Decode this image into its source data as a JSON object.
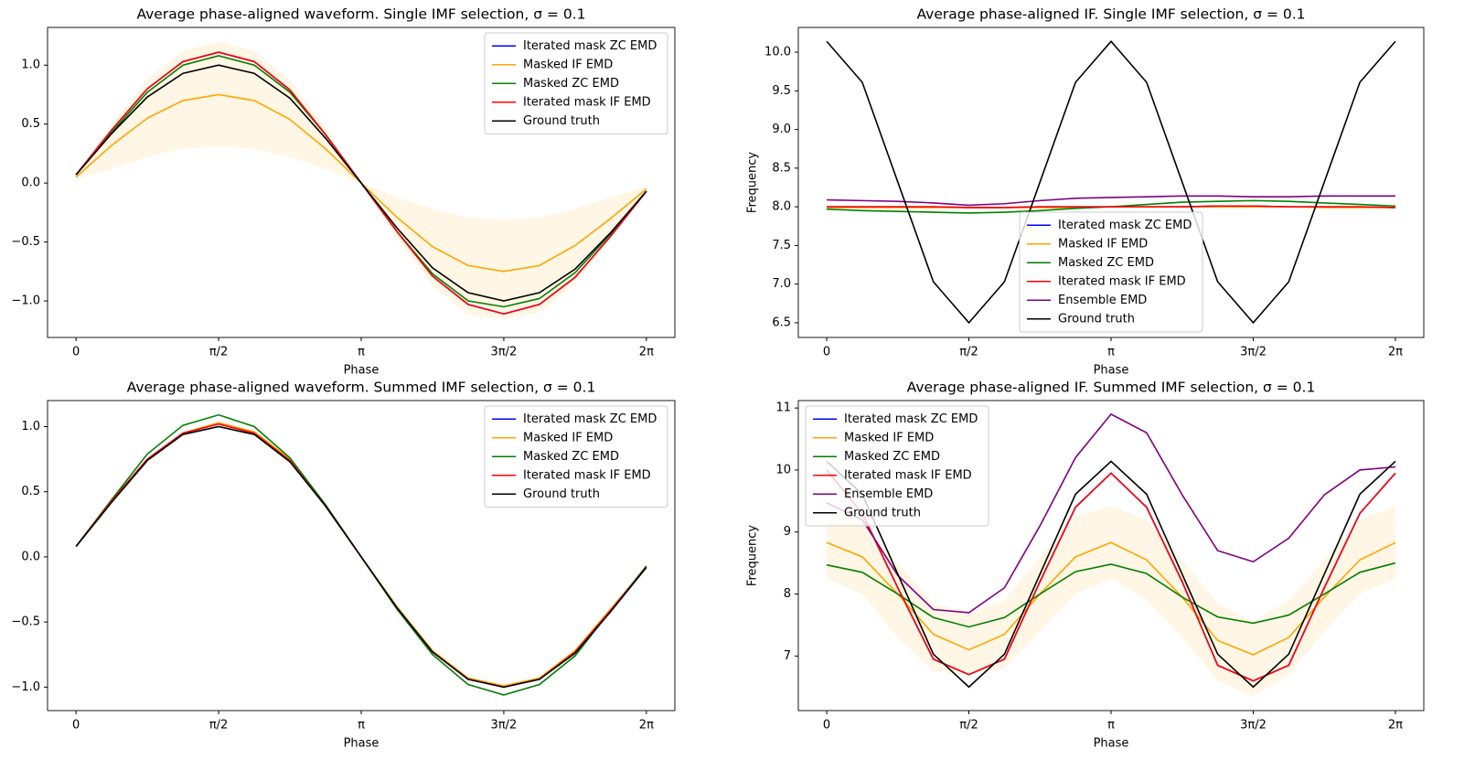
{
  "chart_data": [
    {
      "type": "line",
      "title": "Average phase-aligned waveform. Single IMF selection, σ = 0.1",
      "xlabel": "Phase",
      "legend": "upper right",
      "x": [
        0,
        0.3927,
        0.7854,
        1.1781,
        1.5708,
        1.9635,
        2.3562,
        2.7489,
        3.1416,
        3.5343,
        3.927,
        4.3197,
        4.7124,
        5.1051,
        5.4978,
        5.8905,
        6.2832
      ],
      "xlim": [
        -0.314,
        6.597
      ],
      "ylim": [
        -1.31,
        1.32
      ],
      "xticks": [
        0,
        {
          "value": 1.5708,
          "label": "π/2"
        },
        {
          "value": 3.1416,
          "label": "π"
        },
        {
          "value": 4.7124,
          "label": "3π/2"
        },
        {
          "value": 6.2832,
          "label": "2π"
        }
      ],
      "yticks": [
        {
          "value": -1,
          "label": "−1.0"
        },
        {
          "value": -0.5,
          "label": "−0.5"
        },
        {
          "value": 0,
          "label": "0.0"
        },
        0.5,
        {
          "value": 1,
          "label": "1.0"
        }
      ],
      "series": [
        {
          "name": "Iterated mask ZC EMD",
          "color": "#0000ff",
          "values": [
            0.07,
            0.45,
            0.8,
            1.03,
            1.11,
            1.03,
            0.79,
            0.41,
            0,
            -0.41,
            -0.79,
            -1.03,
            -1.11,
            -1.03,
            -0.8,
            -0.45,
            -0.07
          ]
        },
        {
          "name": "Masked IF EMD",
          "color": "#ffa500",
          "values": [
            0.05,
            0.32,
            0.55,
            0.7,
            0.75,
            0.7,
            0.54,
            0.29,
            0,
            -0.29,
            -0.54,
            -0.7,
            -0.75,
            -0.7,
            -0.53,
            -0.3,
            -0.05
          ],
          "band": {
            "upper": [
              0.07,
              0.5,
              0.88,
              1.12,
              1.2,
              1.12,
              0.87,
              0.47,
              0.0,
              -0.12,
              -0.22,
              -0.29,
              -0.31,
              -0.29,
              -0.22,
              -0.12,
              -0.03
            ],
            "lower": [
              0.03,
              0.12,
              0.22,
              0.29,
              0.31,
              0.29,
              0.22,
              0.12,
              0,
              -0.47,
              -0.87,
              -1.12,
              -1.15,
              -1.1,
              -0.86,
              -0.47,
              -0.07
            ]
          }
        },
        {
          "name": "Masked ZC EMD",
          "color": "#008000",
          "values": [
            0.07,
            0.43,
            0.77,
            1.0,
            1.08,
            1.0,
            0.77,
            0.41,
            0,
            -0.41,
            -0.77,
            -1.0,
            -1.05,
            -0.98,
            -0.76,
            -0.43,
            -0.07
          ]
        },
        {
          "name": "Iterated mask IF EMD",
          "color": "#ff0000",
          "values": [
            0.07,
            0.45,
            0.8,
            1.03,
            1.11,
            1.03,
            0.79,
            0.41,
            0,
            -0.41,
            -0.79,
            -1.03,
            -1.11,
            -1.03,
            -0.8,
            -0.45,
            -0.07
          ]
        },
        {
          "name": "Ground truth",
          "color": "#000000",
          "values": [
            0.07,
            0.42,
            0.73,
            0.93,
            1,
            0.93,
            0.72,
            0.38,
            0,
            -0.38,
            -0.72,
            -0.93,
            -1,
            -0.93,
            -0.73,
            -0.42,
            -0.07
          ]
        }
      ]
    },
    {
      "type": "line",
      "title": "Average phase-aligned IF. Single IMF selection, σ = 0.1",
      "xlabel": "Phase",
      "ylabel": "Frequency",
      "legend": "lower center",
      "x": [
        0,
        0.3927,
        0.7854,
        1.1781,
        1.5708,
        1.9635,
        2.3562,
        2.7489,
        3.1416,
        3.5343,
        3.927,
        4.3197,
        4.7124,
        5.1051,
        5.4978,
        5.8905,
        6.2832
      ],
      "xlim": [
        -0.314,
        6.597
      ],
      "ylim": [
        6.31,
        10.32
      ],
      "xticks": [
        0,
        {
          "value": 1.5708,
          "label": "π/2"
        },
        {
          "value": 3.1416,
          "label": "π"
        },
        {
          "value": 4.7124,
          "label": "3π/2"
        },
        {
          "value": 6.2832,
          "label": "2π"
        }
      ],
      "yticks": [
        6.5,
        {
          "value": 7,
          "label": "7.0"
        },
        7.5,
        {
          "value": 8,
          "label": "8.0"
        },
        8.5,
        {
          "value": 9,
          "label": "9.0"
        },
        9.5,
        {
          "value": 10,
          "label": "10.0"
        }
      ],
      "series": [
        {
          "name": "Iterated mask ZC EMD",
          "color": "#0000ff",
          "values": [
            8.0,
            8.0,
            8.0,
            8.0,
            7.99,
            7.99,
            8.0,
            8.0,
            8.0,
            8.0,
            8.0,
            8.01,
            8.01,
            8.0,
            8.0,
            8.0,
            7.99
          ]
        },
        {
          "name": "Masked IF EMD",
          "color": "#ffa500",
          "values": [
            7.99,
            7.99,
            7.99,
            7.99,
            7.99,
            7.99,
            7.99,
            7.99,
            8.0,
            8.0,
            8.0,
            8.0,
            8.0,
            8.0,
            7.99,
            7.99,
            7.99
          ]
        },
        {
          "name": "Masked ZC EMD",
          "color": "#008000",
          "values": [
            7.97,
            7.95,
            7.94,
            7.93,
            7.92,
            7.93,
            7.95,
            7.98,
            8.0,
            8.03,
            8.06,
            8.07,
            8.08,
            8.07,
            8.05,
            8.03,
            8.01
          ]
        },
        {
          "name": "Iterated mask IF EMD",
          "color": "#ff0000",
          "values": [
            8.0,
            8.0,
            8.0,
            8.0,
            7.99,
            7.99,
            8.0,
            8.0,
            8.0,
            8.0,
            8.0,
            8.01,
            8.01,
            8.0,
            8.0,
            8.0,
            7.99
          ]
        },
        {
          "name": "Ensemble EMD",
          "color": "#800080",
          "values": [
            8.09,
            8.08,
            8.07,
            8.05,
            8.02,
            8.04,
            8.08,
            8.11,
            8.12,
            8.13,
            8.14,
            8.14,
            8.13,
            8.13,
            8.14,
            8.14,
            8.14
          ]
        },
        {
          "name": "Ground truth",
          "color": "#000000",
          "values": [
            10.14,
            9.61,
            8.32,
            7.03,
            6.5,
            7.03,
            8.32,
            9.61,
            10.14,
            9.61,
            8.32,
            7.03,
            6.5,
            7.03,
            8.32,
            9.61,
            10.14
          ]
        }
      ]
    },
    {
      "type": "line",
      "title": "Average phase-aligned waveform. Summed IMF selection, σ = 0.1",
      "xlabel": "Phase",
      "legend": "upper right",
      "x": [
        0,
        0.3927,
        0.7854,
        1.1781,
        1.5708,
        1.9635,
        2.3562,
        2.7489,
        3.1416,
        3.5343,
        3.927,
        4.3197,
        4.7124,
        5.1051,
        5.4978,
        5.8905,
        6.2832
      ],
      "xlim": [
        -0.314,
        6.597
      ],
      "ylim": [
        -1.18,
        1.2
      ],
      "xticks": [
        0,
        {
          "value": 1.5708,
          "label": "π/2"
        },
        {
          "value": 3.1416,
          "label": "π"
        },
        {
          "value": 4.7124,
          "label": "3π/2"
        },
        {
          "value": 6.2832,
          "label": "2π"
        }
      ],
      "yticks": [
        {
          "value": -1,
          "label": "−1.0"
        },
        {
          "value": -0.5,
          "label": "−0.5"
        },
        {
          "value": 0,
          "label": "0.0"
        },
        0.5,
        {
          "value": 1,
          "label": "1.0"
        }
      ],
      "series": [
        {
          "name": "Iterated mask ZC EMD",
          "color": "#0000ff",
          "values": [
            0.08,
            0.43,
            0.75,
            0.95,
            1.02,
            0.95,
            0.74,
            0.39,
            0,
            -0.39,
            -0.73,
            -0.94,
            -1.0,
            -0.94,
            -0.73,
            -0.41,
            -0.08
          ]
        },
        {
          "name": "Masked IF EMD",
          "color": "#ffa500",
          "values": [
            0.08,
            0.42,
            0.74,
            0.95,
            1.03,
            0.96,
            0.75,
            0.4,
            0,
            -0.38,
            -0.72,
            -0.93,
            -0.99,
            -0.93,
            -0.72,
            -0.4,
            -0.08
          ]
        },
        {
          "name": "Masked ZC EMD",
          "color": "#008000",
          "values": [
            0.08,
            0.44,
            0.79,
            1.01,
            1.09,
            1.0,
            0.76,
            0.4,
            0,
            -0.4,
            -0.75,
            -0.98,
            -1.06,
            -0.98,
            -0.76,
            -0.41,
            -0.07
          ]
        },
        {
          "name": "Iterated mask IF EMD",
          "color": "#ff0000",
          "values": [
            0.08,
            0.43,
            0.75,
            0.95,
            1.02,
            0.95,
            0.74,
            0.39,
            0,
            -0.39,
            -0.73,
            -0.94,
            -1.0,
            -0.94,
            -0.73,
            -0.41,
            -0.08
          ]
        },
        {
          "name": "Ground truth",
          "color": "#000000",
          "values": [
            0.08,
            0.42,
            0.74,
            0.94,
            1.0,
            0.94,
            0.73,
            0.39,
            0,
            -0.39,
            -0.73,
            -0.94,
            -1.0,
            -0.94,
            -0.74,
            -0.42,
            -0.08
          ]
        }
      ]
    },
    {
      "type": "line",
      "title": "Average phase-aligned IF. Summed IMF selection, σ = 0.1",
      "xlabel": "Phase",
      "ylabel": "Frequency",
      "legend": "upper left",
      "x": [
        0,
        0.3927,
        0.7854,
        1.1781,
        1.5708,
        1.9635,
        2.3562,
        2.7489,
        3.1416,
        3.5343,
        3.927,
        4.3197,
        4.7124,
        5.1051,
        5.4978,
        5.8905,
        6.2832
      ],
      "xlim": [
        -0.314,
        6.597
      ],
      "ylim": [
        6.12,
        11.12
      ],
      "xticks": [
        0,
        {
          "value": 1.5708,
          "label": "π/2"
        },
        {
          "value": 3.1416,
          "label": "π"
        },
        {
          "value": 4.7124,
          "label": "3π/2"
        },
        {
          "value": 6.2832,
          "label": "2π"
        }
      ],
      "yticks": [
        7,
        8,
        9,
        10,
        11
      ],
      "series": [
        {
          "name": "Iterated mask ZC EMD",
          "color": "#0000ff",
          "values": [
            10.0,
            9.3,
            8.1,
            6.95,
            6.7,
            6.95,
            8.2,
            9.4,
            9.95,
            9.4,
            8.2,
            6.85,
            6.6,
            6.85,
            8.1,
            9.3,
            9.95
          ]
        },
        {
          "name": "Masked IF EMD",
          "color": "#ffa500",
          "values": [
            8.83,
            8.6,
            8.0,
            7.35,
            7.1,
            7.35,
            8.0,
            8.6,
            8.83,
            8.55,
            7.95,
            7.25,
            7.02,
            7.3,
            7.95,
            8.55,
            8.83
          ],
          "band": {
            "upper": [
              9.45,
              9.2,
              8.5,
              7.85,
              7.7,
              7.9,
              8.6,
              9.25,
              9.42,
              9.2,
              8.55,
              7.85,
              7.55,
              7.9,
              8.55,
              9.2,
              9.42
            ],
            "lower": [
              8.25,
              8.0,
              7.3,
              6.75,
              6.7,
              6.8,
              7.4,
              8.0,
              8.25,
              7.9,
              7.3,
              6.6,
              6.35,
              6.7,
              7.4,
              8.0,
              8.25
            ]
          }
        },
        {
          "name": "Masked ZC EMD",
          "color": "#008000",
          "values": [
            8.47,
            8.35,
            8.0,
            7.62,
            7.47,
            7.62,
            8.0,
            8.36,
            8.48,
            8.33,
            7.95,
            7.63,
            7.53,
            7.66,
            8.0,
            8.35,
            8.5
          ]
        },
        {
          "name": "Iterated mask IF EMD",
          "color": "#ff0000",
          "values": [
            10.0,
            9.3,
            8.1,
            6.95,
            6.7,
            6.95,
            8.2,
            9.4,
            9.95,
            9.4,
            8.2,
            6.85,
            6.6,
            6.85,
            8.1,
            9.3,
            9.95
          ]
        },
        {
          "name": "Ensemble EMD",
          "color": "#800080",
          "values": [
            9.47,
            9.2,
            8.3,
            7.75,
            7.7,
            8.1,
            9.1,
            10.2,
            10.9,
            10.6,
            9.6,
            8.7,
            8.52,
            8.9,
            9.6,
            10.0,
            10.05
          ]
        },
        {
          "name": "Ground truth",
          "color": "#000000",
          "values": [
            10.14,
            9.61,
            8.32,
            7.03,
            6.5,
            7.03,
            8.32,
            9.61,
            10.14,
            9.61,
            8.32,
            7.03,
            6.5,
            7.03,
            8.32,
            9.61,
            10.14
          ]
        }
      ]
    }
  ]
}
